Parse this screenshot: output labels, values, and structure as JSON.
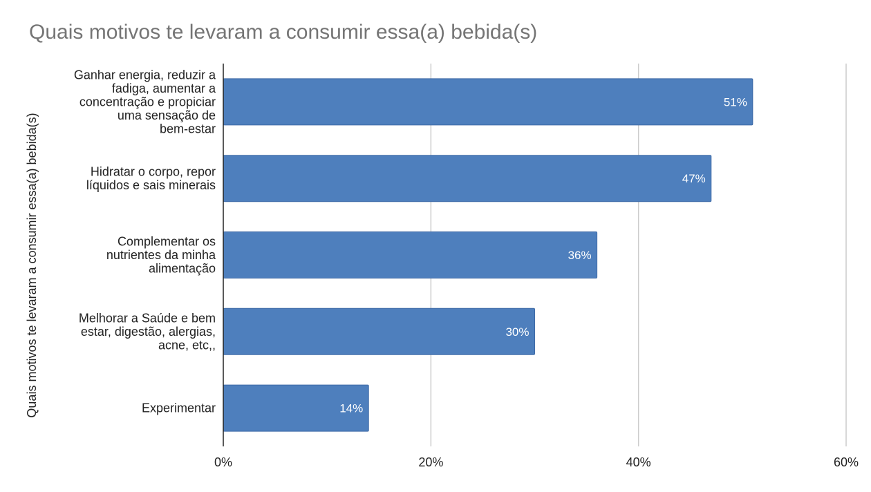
{
  "chart_data": {
    "type": "bar",
    "orientation": "horizontal",
    "title": "Quais motivos te levaram a consumir essa(a) bebida(s)",
    "ylabel": "Quais motivos te levaram a consumir essa(a) bebida(s)",
    "xlabel": "",
    "categories": [
      [
        "Ganhar energia, reduzir a",
        "fadiga, aumentar a",
        "concentração e propiciar",
        "uma sensação de",
        "bem-estar"
      ],
      [
        "Hidratar o corpo, repor",
        "líquidos e sais minerais"
      ],
      [
        "Complementar os",
        "nutrientes da minha",
        "alimentação"
      ],
      [
        "Melhorar a Saúde e bem",
        "estar, digestão, alergias,",
        "acne, etc,,"
      ],
      [
        "Experimentar"
      ]
    ],
    "values": [
      51,
      47,
      36,
      30,
      14
    ],
    "value_labels": [
      "51%",
      "47%",
      "36%",
      "30%",
      "14%"
    ],
    "xlim": [
      0,
      60
    ],
    "x_ticks": [
      0,
      20,
      40,
      60
    ],
    "x_tick_labels": [
      "0%",
      "20%",
      "40%",
      "60%"
    ],
    "grid": true,
    "bar_color": "#4e7fbd",
    "bar_border_color": "#3e6aa6",
    "grid_color": "#cccccc",
    "axis_color": "#222222"
  }
}
